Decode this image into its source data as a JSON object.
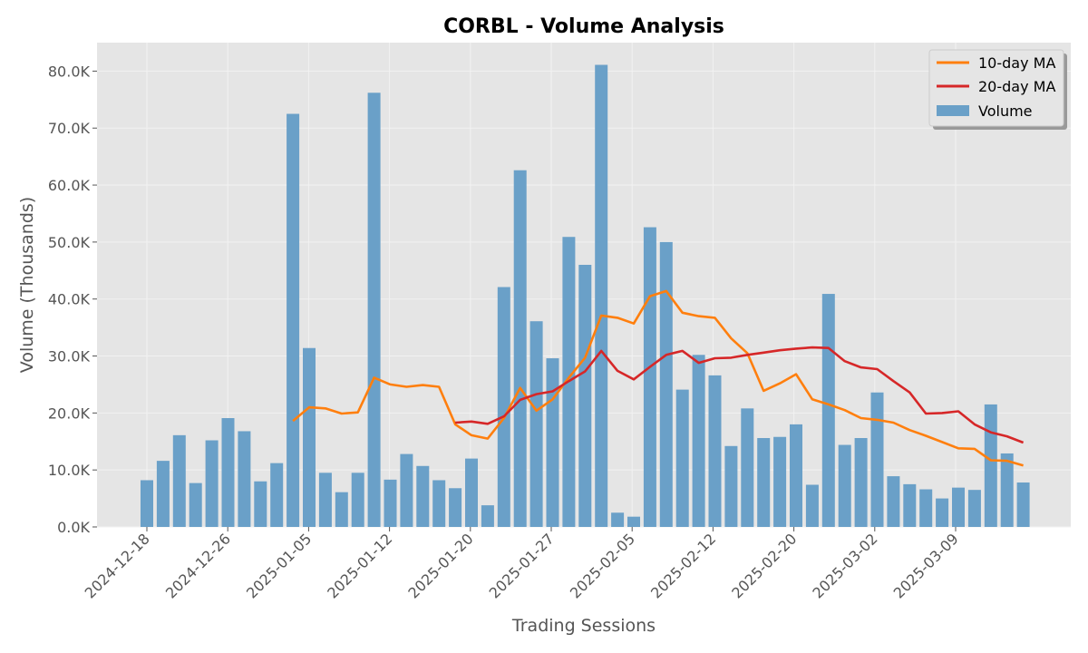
{
  "chart_data": {
    "type": "bar",
    "title": "CORBL - Volume Analysis",
    "xlabel": "Trading Sessions",
    "ylabel": "Volume (Thousands)",
    "ylim": [
      0,
      85
    ],
    "y_ticks": [
      0,
      10,
      20,
      30,
      40,
      50,
      60,
      70,
      80
    ],
    "y_tick_labels": [
      "0.0K",
      "10.0K",
      "20.0K",
      "30.0K",
      "40.0K",
      "50.0K",
      "60.0K",
      "70.0K",
      "80.0K"
    ],
    "x_tick_labels": [
      "2024-12-18",
      "2024-12-26",
      "2025-01-05",
      "2025-01-12",
      "2025-01-20",
      "2025-01-27",
      "2025-02-05",
      "2025-02-12",
      "2025-02-20",
      "2025-03-02",
      "2025-03-09"
    ],
    "grid": true,
    "legend_position": "top-right",
    "colors": {
      "volume": "#6aa0c8",
      "ma10": "#ff7f0e",
      "ma20": "#d62728",
      "panel_bg": "#e5e5e5"
    },
    "series": [
      {
        "name": "Volume",
        "kind": "bar",
        "values": [
          8.2,
          11.6,
          16.1,
          7.7,
          15.2,
          19.1,
          16.8,
          8.0,
          11.2,
          72.5,
          31.4,
          9.5,
          6.1,
          9.5,
          76.2,
          8.3,
          12.8,
          10.7,
          8.2,
          6.8,
          12.0,
          3.8,
          42.1,
          62.6,
          36.1,
          29.6,
          50.9,
          46.0,
          81.1,
          2.5,
          1.8,
          52.6,
          50.0,
          24.1,
          30.2,
          26.6,
          14.2,
          20.8,
          15.6,
          15.8,
          18.0,
          7.4,
          40.9,
          14.4,
          15.6,
          23.6,
          8.9,
          7.5,
          6.6,
          5.0,
          6.9,
          6.5,
          21.5,
          12.9,
          7.8
        ]
      },
      {
        "name": "10-day MA",
        "kind": "line",
        "values": [
          null,
          null,
          null,
          null,
          null,
          null,
          null,
          null,
          null,
          18.6,
          21.0,
          20.8,
          19.9,
          20.1,
          26.2,
          25.0,
          24.6,
          24.9,
          24.6,
          18.0,
          16.1,
          15.5,
          19.1,
          24.4,
          20.4,
          22.4,
          26.2,
          29.7,
          37.1,
          36.7,
          35.7,
          40.5,
          41.4,
          37.6,
          37.0,
          36.7,
          33.1,
          30.5,
          23.9,
          25.2,
          26.8,
          22.4,
          21.5,
          20.5,
          19.1,
          18.8,
          18.3,
          17.0,
          16.0,
          14.9,
          13.8,
          13.7,
          11.7,
          11.6,
          10.8
        ]
      },
      {
        "name": "20-day MA",
        "kind": "line",
        "values": [
          null,
          null,
          null,
          null,
          null,
          null,
          null,
          null,
          null,
          null,
          null,
          null,
          null,
          null,
          null,
          null,
          null,
          null,
          null,
          18.3,
          18.5,
          18.1,
          19.4,
          22.3,
          23.3,
          23.8,
          25.6,
          27.3,
          30.9,
          27.4,
          25.9,
          28.1,
          30.2,
          30.9,
          28.8,
          29.6,
          29.7,
          30.2,
          30.6,
          31.0,
          31.3,
          31.5,
          31.4,
          29.1,
          28.0,
          27.7,
          25.6,
          23.6,
          19.9,
          20.0,
          20.3,
          18.0,
          16.6,
          15.9,
          14.8
        ]
      }
    ]
  }
}
